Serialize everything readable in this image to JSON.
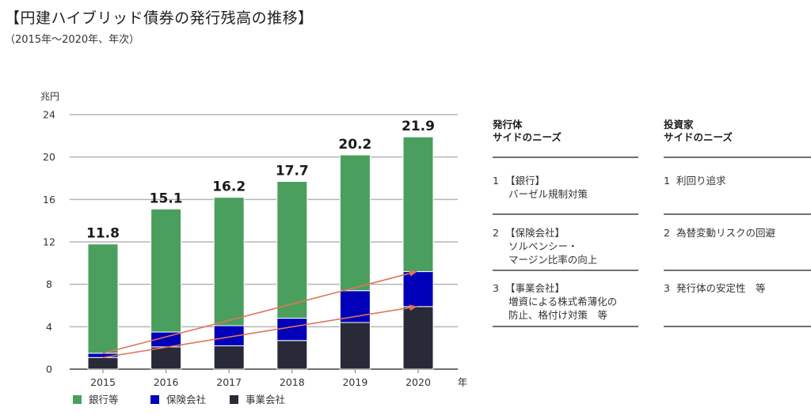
{
  "header": {
    "title": "【円建ハイブリッド債券の発行残高の推移】",
    "subtitle": "（2015年～2020年、年次）"
  },
  "chart_data": {
    "type": "bar",
    "stacked": true,
    "title": "円建ハイブリッド債券の発行残高の推移",
    "ylabel": "兆円",
    "xlabel": "年",
    "ylim": [
      0,
      24
    ],
    "yticks": [
      0,
      4,
      8,
      12,
      16,
      20,
      24
    ],
    "grid": true,
    "categories": [
      "2015",
      "2016",
      "2017",
      "2018",
      "2019",
      "2020"
    ],
    "series": [
      {
        "name": "事業会社",
        "color": "#282a38",
        "values": [
          1.1,
          2.1,
          2.2,
          2.7,
          4.4,
          5.9
        ]
      },
      {
        "name": "保険会社",
        "color": "#0000b8",
        "values": [
          0.4,
          1.4,
          1.9,
          2.1,
          3.0,
          3.3
        ]
      },
      {
        "name": "銀行等",
        "color": "#4a9f5e",
        "values": [
          10.3,
          11.6,
          12.1,
          12.9,
          12.8,
          12.7
        ]
      }
    ],
    "totals": [
      "11.8",
      "15.1",
      "16.2",
      "17.7",
      "20.2",
      "21.9"
    ],
    "legend": [
      "銀行等",
      "保険会社",
      "事業会社"
    ],
    "legend_colors": [
      "#4a9f5e",
      "#0000b8",
      "#282a38"
    ],
    "legend_position": "bottom-left",
    "annotations": [
      {
        "type": "arrow",
        "from": [
          "2015",
          1.5
        ],
        "to": [
          "2020",
          9.2
        ],
        "color": "#e0735a"
      },
      {
        "type": "arrow",
        "from": [
          "2015",
          1.1
        ],
        "to": [
          "2020",
          5.9
        ],
        "color": "#e0735a"
      }
    ]
  },
  "issuer_needs": {
    "header_line1": "発行体",
    "header_line2": "サイドのニーズ",
    "items": [
      {
        "num": "1",
        "label": "【銀行】",
        "lines": [
          "バーゼル規制対策"
        ]
      },
      {
        "num": "2",
        "label": "【保険会社】",
        "lines": [
          "ソルベンシー・",
          "マージン比率の向上"
        ]
      },
      {
        "num": "3",
        "label": "【事業会社】",
        "lines": [
          "増資による株式希薄化の",
          "防止、格付け対策　等"
        ]
      }
    ]
  },
  "investor_needs": {
    "header_line1": "投資家",
    "header_line2": "サイドのニーズ",
    "items": [
      {
        "num": "1",
        "text": "利回り追求"
      },
      {
        "num": "2",
        "text": "為替変動リスクの回避"
      },
      {
        "num": "3",
        "text": "発行体の安定性　等"
      }
    ]
  }
}
